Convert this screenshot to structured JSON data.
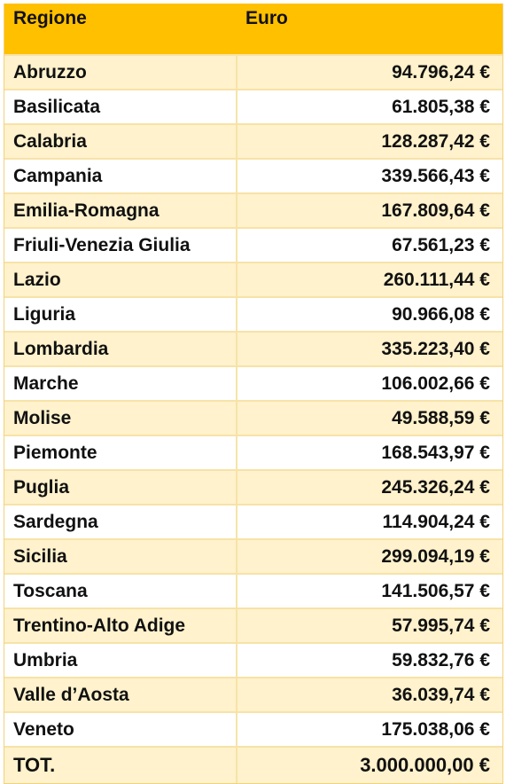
{
  "table": {
    "headers": [
      "Regione",
      "Euro"
    ],
    "rows": [
      [
        "Abruzzo",
        "94.796,24 €"
      ],
      [
        "Basilicata",
        "61.805,38 €"
      ],
      [
        "Calabria",
        "128.287,42 €"
      ],
      [
        "Campania",
        "339.566,43 €"
      ],
      [
        "Emilia-Romagna",
        "167.809,64 €"
      ],
      [
        "Friuli-Venezia Giulia",
        "67.561,23 €"
      ],
      [
        "Lazio",
        "260.111,44 €"
      ],
      [
        "Liguria",
        "90.966,08 €"
      ],
      [
        "Lombardia",
        "335.223,40 €"
      ],
      [
        "Marche",
        "106.002,66 €"
      ],
      [
        "Molise",
        "49.588,59 €"
      ],
      [
        "Piemonte",
        "168.543,97 €"
      ],
      [
        "Puglia",
        "245.326,24 €"
      ],
      [
        "Sardegna",
        "114.904,24 €"
      ],
      [
        "Sicilia",
        "299.094,19 €"
      ],
      [
        "Toscana",
        "141.506,57 €"
      ],
      [
        "Trentino-Alto Adige",
        "57.995,74 €"
      ],
      [
        "Umbria",
        "59.832,76 €"
      ],
      [
        "Valle d’Aosta",
        "36.039,74 €"
      ],
      [
        "Veneto",
        "175.038,06 €"
      ]
    ],
    "total": [
      "TOT.",
      "3.000.000,00 €"
    ]
  },
  "colors": {
    "header_background": "#ffc000",
    "odd_row_background": "#fff2cc",
    "even_row_background": "#ffffff",
    "grid_line": "#f7e3a8"
  }
}
